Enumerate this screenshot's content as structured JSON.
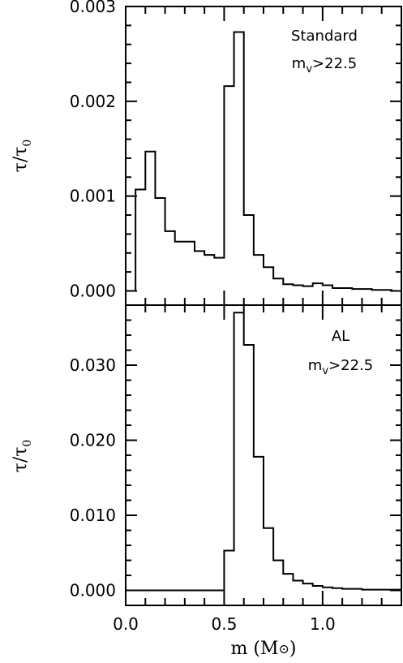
{
  "chart_data": [
    {
      "type": "histogram",
      "panel": "top",
      "ylabel": "τ/τ₀",
      "ylabel_main": "τ/τ",
      "ylabel_sub": "0",
      "xlabel": "",
      "xlim": [
        0.0,
        1.4
      ],
      "ylim": [
        -0.00015,
        0.003
      ],
      "yticks_major": [
        0.0,
        0.001,
        0.002,
        0.003
      ],
      "ytick_labels": [
        "0.000",
        "0.001",
        "0.002",
        "0.003"
      ],
      "annotation_line1": "Standard",
      "annotation_line2_main": "m",
      "annotation_line2_sub": "v",
      "annotation_line2_rest": ">22.5",
      "bins_edges": [
        0.0,
        0.05,
        0.1,
        0.15,
        0.2,
        0.25,
        0.3,
        0.35,
        0.4,
        0.45,
        0.5,
        0.55,
        0.6,
        0.65,
        0.7,
        0.75,
        0.8,
        0.85,
        0.9,
        0.95,
        1.0,
        1.05,
        1.1,
        1.15,
        1.2,
        1.25,
        1.3,
        1.35,
        1.4
      ],
      "values": [
        0.0,
        0.00107,
        0.00147,
        0.00098,
        0.00063,
        0.00052,
        0.00052,
        0.00042,
        0.00038,
        0.00035,
        0.00216,
        0.00273,
        0.0008,
        0.00038,
        0.00025,
        0.00013,
        7e-05,
        6e-05,
        5e-05,
        8e-05,
        6e-05,
        3e-05,
        3e-05,
        2e-05,
        2e-05,
        1e-05,
        1e-05,
        0.0
      ]
    },
    {
      "type": "histogram",
      "panel": "bottom",
      "ylabel": "τ/τ₀",
      "ylabel_main": "τ/τ",
      "ylabel_sub": "0",
      "xlabel": "m (M☉)",
      "xlabel_text": "m (M",
      "xlabel_symbol": "⊙",
      "xlabel_close": ")",
      "xlim": [
        0.0,
        1.4
      ],
      "ylim": [
        -0.002,
        0.038
      ],
      "yticks_major": [
        0.0,
        0.01,
        0.02,
        0.03
      ],
      "ytick_labels": [
        "0.000",
        "0.010",
        "0.020",
        "0.030"
      ],
      "xticks_major": [
        0.0,
        0.5,
        1.0
      ],
      "xtick_labels": [
        "0.0",
        "0.5",
        "1.0"
      ],
      "annotation_line1": "AL",
      "annotation_line2_main": "m",
      "annotation_line2_sub": "v",
      "annotation_line2_rest": ">22.5",
      "bins_edges": [
        0.0,
        0.05,
        0.1,
        0.15,
        0.2,
        0.25,
        0.3,
        0.35,
        0.4,
        0.45,
        0.5,
        0.55,
        0.6,
        0.65,
        0.7,
        0.75,
        0.8,
        0.85,
        0.9,
        0.95,
        1.0,
        1.05,
        1.1,
        1.15,
        1.2,
        1.25,
        1.3,
        1.35,
        1.4
      ],
      "values": [
        0.0,
        0.0,
        0.0,
        0.0,
        0.0,
        0.0,
        0.0,
        0.0,
        0.0,
        0.0,
        0.0053,
        0.037,
        0.0327,
        0.0178,
        0.0083,
        0.004,
        0.0022,
        0.0013,
        0.0009,
        0.0006,
        0.0004,
        0.0003,
        0.0002,
        0.0002,
        0.0001,
        0.0001,
        0.0001,
        0.0001
      ]
    }
  ]
}
